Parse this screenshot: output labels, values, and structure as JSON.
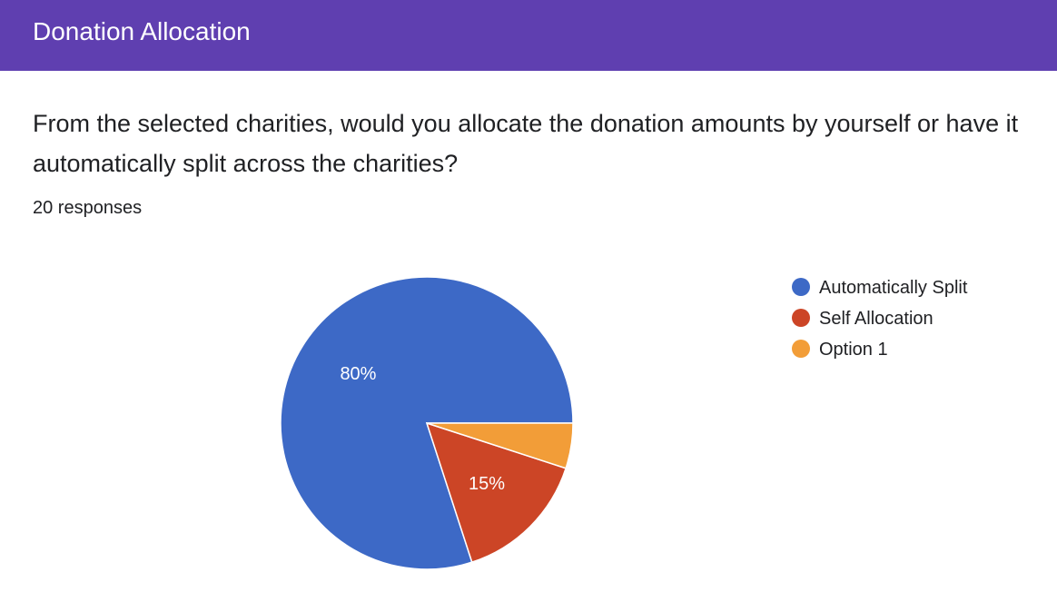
{
  "header": {
    "title": "Donation Allocation"
  },
  "question": {
    "text": "From the selected charities, would you allocate the donation amounts by yourself or have it automatically split across the charities?",
    "responses": "20 responses"
  },
  "chart_data": {
    "type": "pie",
    "categories": [
      "Automatically Split",
      "Self Allocation",
      "Option 1"
    ],
    "values": [
      80,
      15,
      5
    ],
    "labels": [
      "80%",
      "15%",
      ""
    ],
    "colors": [
      "#3d69c6",
      "#cc4526",
      "#f29d38"
    ],
    "legend": "right"
  }
}
